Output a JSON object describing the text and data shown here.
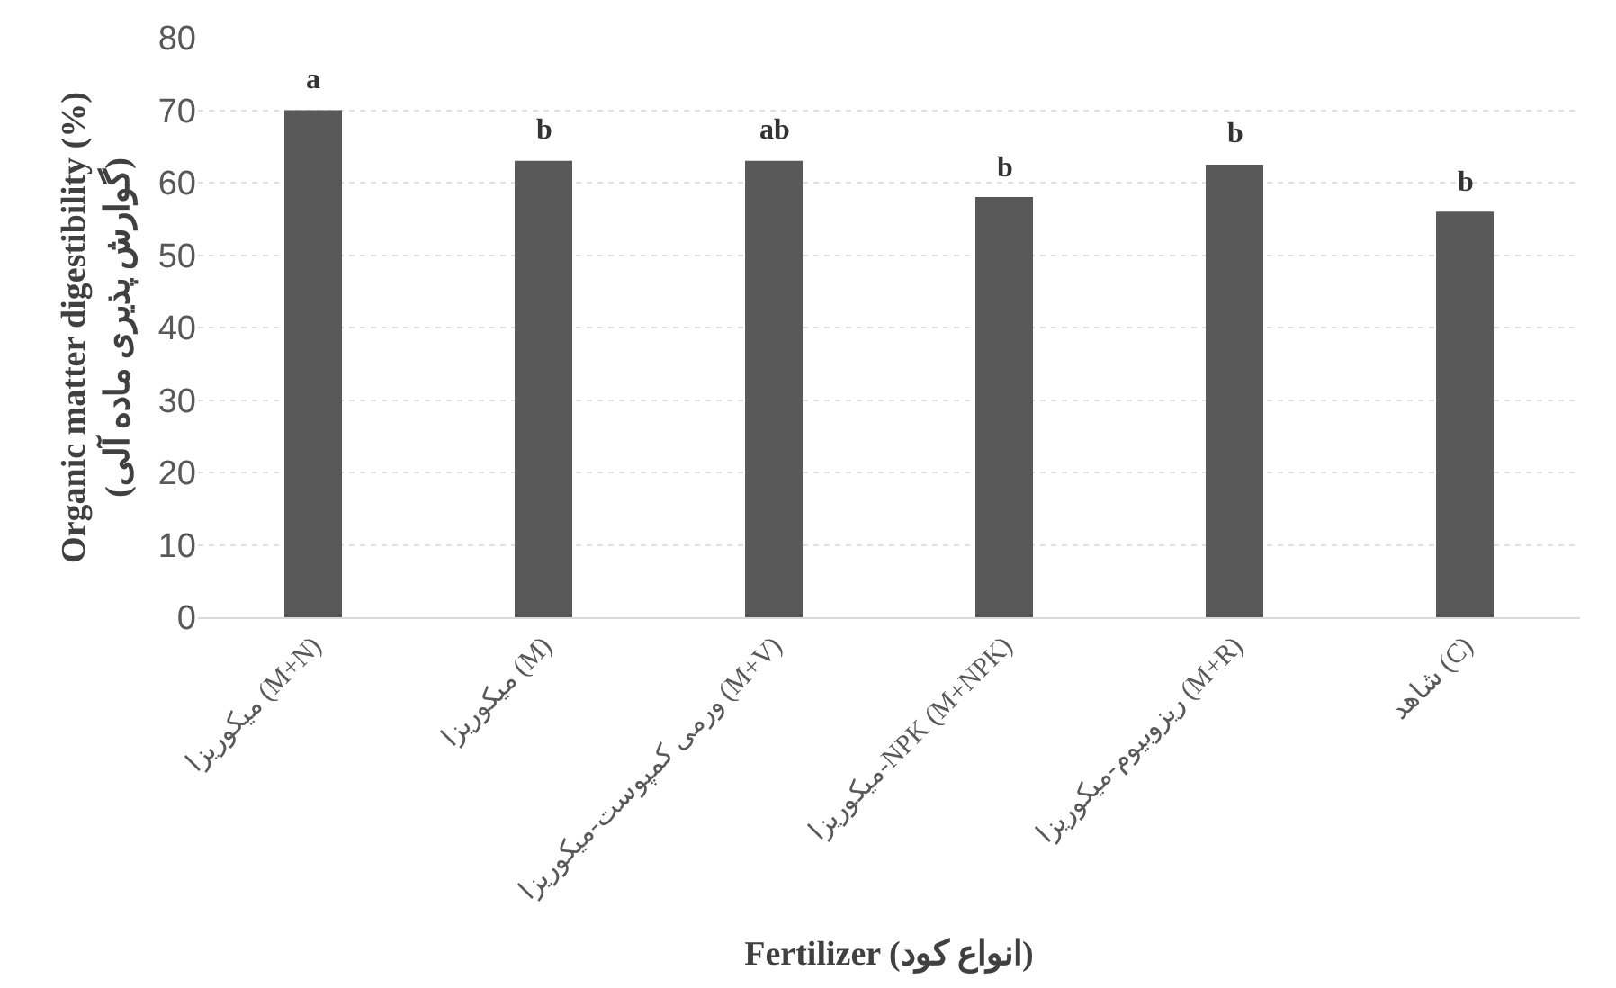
{
  "chart_data": {
    "type": "bar",
    "xlabel": "Fertilizer (انواع کود)",
    "ylabel": "Organic matter digestibility (%) (گوارش پذیری ماده آلی)",
    "categories": [
      "میکوریزا (M+N)",
      "میکوریزا (M)",
      "ورمی کمپوست-میکوریزا (M+V)",
      "میکوریزا-NPK (M+NPK)",
      "ریزوبیوم-میکوریزا (M+R)",
      "شاهد (C)"
    ],
    "values": [
      70,
      63,
      63,
      58,
      62.5,
      56
    ],
    "color": "#595959",
    "ylim": [
      0,
      80
    ],
    "yticks": [
      0,
      10,
      20,
      30,
      40,
      50,
      60,
      70,
      80
    ],
    "grid": "y",
    "annotations": [
      {
        "text": "a",
        "x": "میکوریزا (M+N)",
        "y": 70
      },
      {
        "text": "b",
        "x": "میکوریزا (M)",
        "y": 63
      },
      {
        "text": "ab",
        "x": "ورمی کمپوست-میکوریزا (M+V)",
        "y": 63
      },
      {
        "text": "b",
        "x": "میکوریزا-NPK (M+NPK)",
        "y": 58
      },
      {
        "text": "b",
        "x": "ریزوبیوم-میکوریزا (M+R)",
        "y": 62.5
      },
      {
        "text": "b",
        "x": "شاهد (C)",
        "y": 56
      }
    ]
  }
}
